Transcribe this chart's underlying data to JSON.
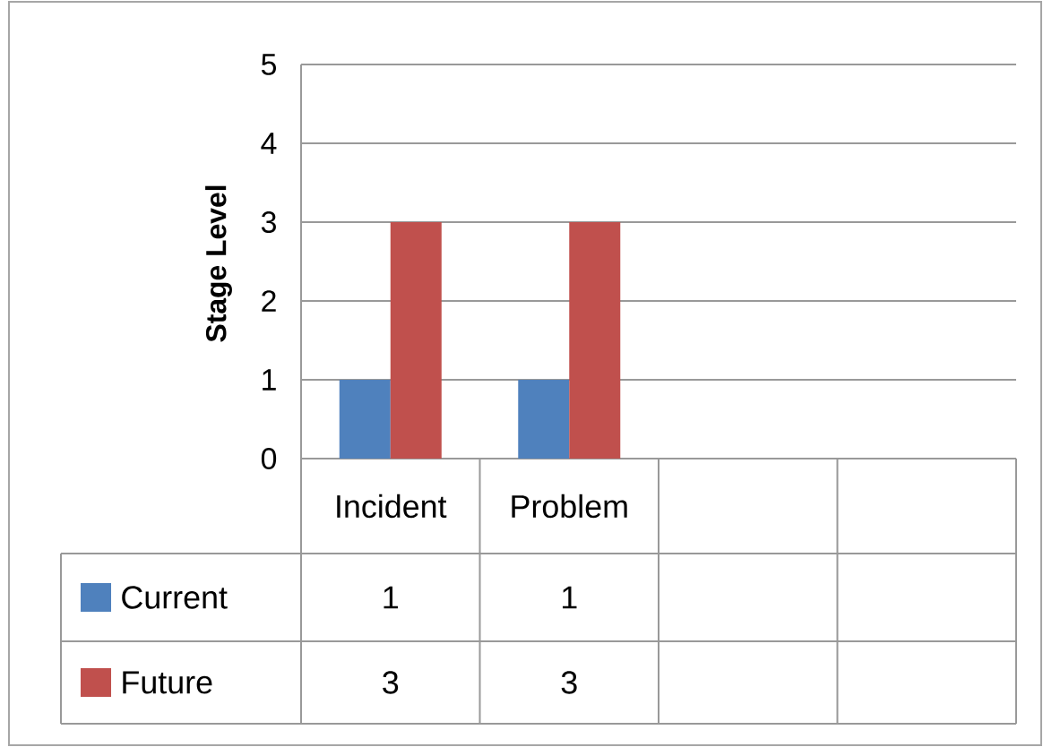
{
  "chart_data": {
    "type": "bar",
    "ylabel": "Stage Level",
    "categories": [
      "Incident",
      "Problem",
      null,
      null
    ],
    "series": [
      {
        "name": "Current",
        "color": "#4f81bd",
        "values": [
          1,
          1,
          null,
          null
        ]
      },
      {
        "name": "Future",
        "color": "#c0504d",
        "values": [
          3,
          3,
          null,
          null
        ]
      }
    ],
    "ylim": [
      0,
      5
    ],
    "yticks": [
      0,
      1,
      2,
      3,
      4,
      5
    ],
    "grid": "y",
    "data_labels": true,
    "legend": "bottom left"
  }
}
